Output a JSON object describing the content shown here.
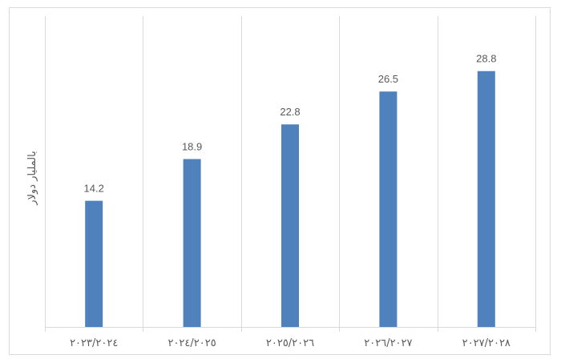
{
  "chart_data": {
    "type": "bar",
    "title": "",
    "xlabel": "",
    "ylabel": "بالمليار دولار",
    "categories": [
      "٢٠٢٣/٢٠٢٤",
      "٢٠٢٤/٢٠٢٥",
      "٢٠٢٥/٢٠٢٦",
      "٢٠٢٦/٢٠٢٧",
      "٢٠٢٧/٢٠٢٨"
    ],
    "values": [
      14.2,
      18.9,
      22.8,
      26.5,
      28.8
    ],
    "value_labels": [
      "14.2",
      "18.9",
      "22.8",
      "26.5",
      "28.8"
    ],
    "ylim": [
      0,
      35
    ],
    "grid": "vertical",
    "legend": "none",
    "colors": {
      "bar": "#4f81bd",
      "gridline": "#d9d9d9",
      "text": "#595959"
    }
  }
}
